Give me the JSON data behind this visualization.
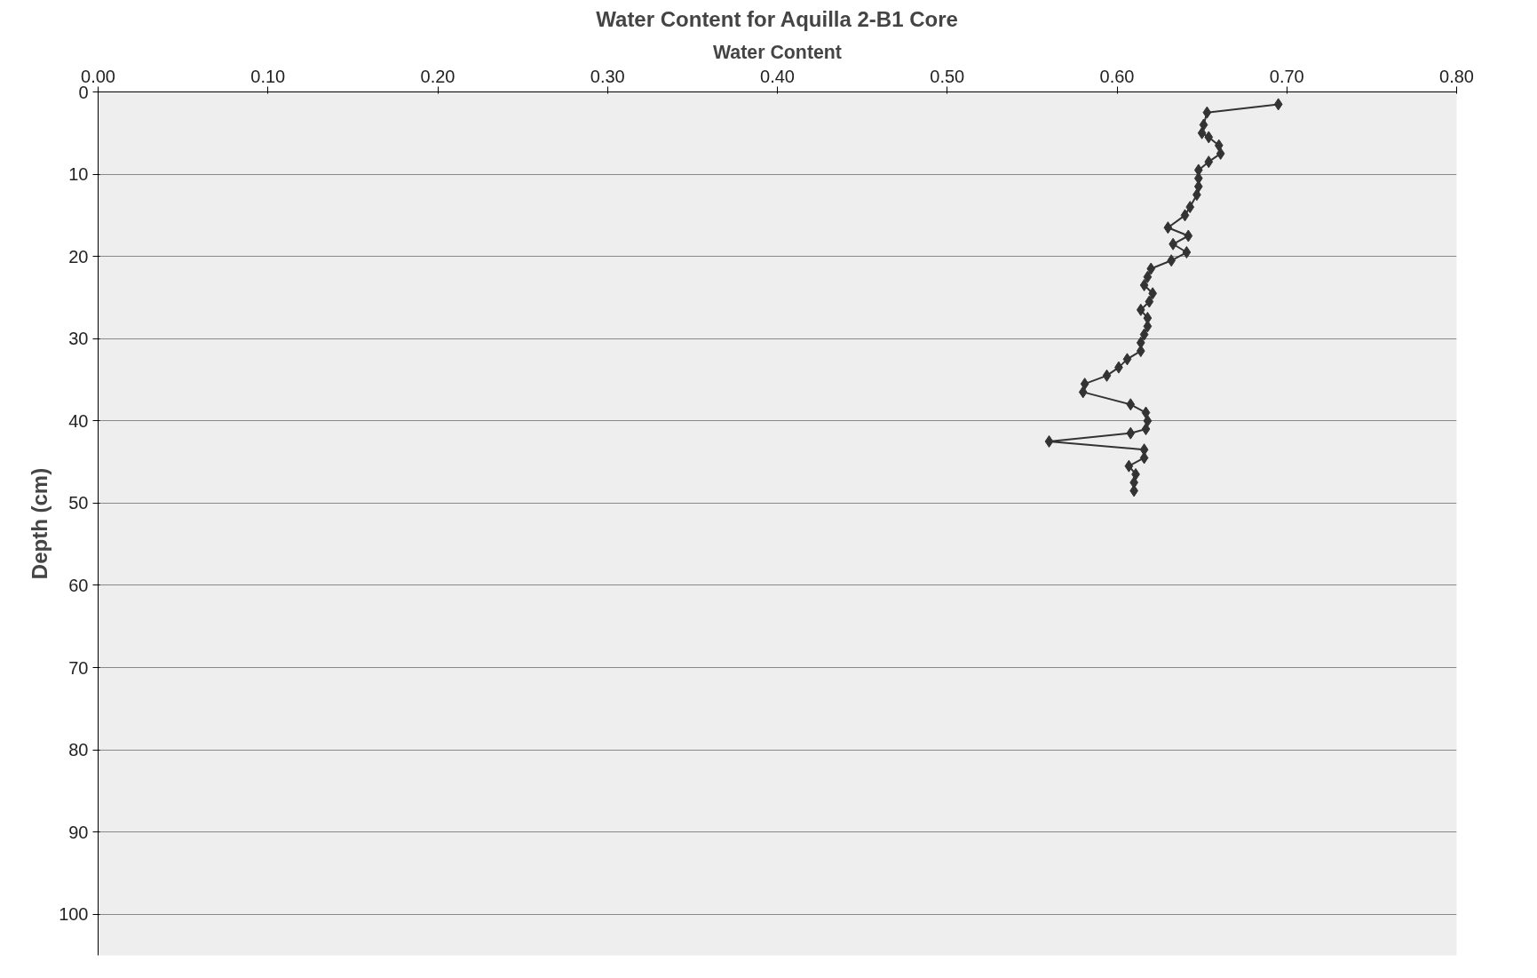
{
  "chart_data": {
    "type": "line",
    "title": "Water Content for Aquilla 2-B1 Core",
    "xlabel": "Water Content",
    "ylabel": "Depth (cm)",
    "xlim": [
      0,
      0.8
    ],
    "xticks": [
      {
        "value": 0,
        "label": "0.00"
      },
      {
        "value": 0.1,
        "label": "0.10"
      },
      {
        "value": 0.2,
        "label": "0.20"
      },
      {
        "value": 0.3,
        "label": "0.30"
      },
      {
        "value": 0.4,
        "label": "0.40"
      },
      {
        "value": 0.5,
        "label": "0.50"
      },
      {
        "value": 0.6,
        "label": "0.60"
      },
      {
        "value": 0.7,
        "label": "0.70"
      },
      {
        "value": 0.8,
        "label": "0.80"
      }
    ],
    "ylim": [
      105,
      0
    ],
    "yticks": [
      0,
      10,
      20,
      30,
      40,
      50,
      60,
      70,
      80,
      90,
      100
    ],
    "grid": "y",
    "marker": "diamond",
    "line_style": "solid",
    "series": [
      {
        "color": "#333333",
        "x": [
          0.695,
          0.653,
          0.651,
          0.65,
          0.654,
          0.66,
          0.661,
          0.654,
          0.648,
          0.648,
          0.648,
          0.647,
          0.643,
          0.64,
          0.63,
          0.642,
          0.633,
          0.641,
          0.632,
          0.62,
          0.618,
          0.616,
          0.621,
          0.619,
          0.614,
          0.618,
          0.618,
          0.616,
          0.614,
          0.614,
          0.606,
          0.601,
          0.594,
          0.581,
          0.58,
          0.608,
          0.617,
          0.618,
          0.617,
          0.608,
          0.56,
          0.616,
          0.616,
          0.607,
          0.611,
          0.61,
          0.61
        ],
        "values": [
          1.5,
          2.5,
          4,
          5,
          5.5,
          6.5,
          7.5,
          8.5,
          9.5,
          10.5,
          11.5,
          12.5,
          14,
          15,
          16.5,
          17.5,
          18.5,
          19.5,
          20.5,
          21.5,
          22.5,
          23.5,
          24.5,
          25.5,
          26.5,
          27.5,
          28.5,
          29.5,
          30.5,
          31.5,
          32.5,
          33.5,
          34.5,
          35.5,
          36.5,
          38,
          39,
          40,
          41,
          41.5,
          42.5,
          43.5,
          44.5,
          45.5,
          46.5,
          47.5,
          48.5
        ]
      }
    ]
  }
}
